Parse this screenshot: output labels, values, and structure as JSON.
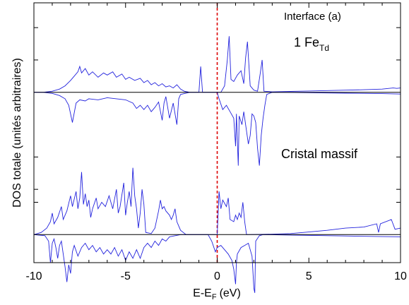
{
  "chart_data": {
    "type": "line",
    "xlabel": "E-E",
    "xlabel_sub": "F",
    "xlabel_unit": "(eV)",
    "ylabel": "DOS totale (unités arbitraires)",
    "xlim": [
      -10,
      10
    ],
    "ylim": [
      -7.9,
      4.15
    ],
    "xticks": [
      -10,
      -5,
      0,
      5,
      10
    ],
    "fermi_level": 0,
    "fermi_color": "#dd0000",
    "line_color": "#2222dd",
    "panels": [
      {
        "label": "Interface (a)",
        "sublabel_main": "1 Fe",
        "sublabel_sub": "Td",
        "baseline": 0,
        "spin_up": [
          [
            -10,
            0
          ],
          [
            -9.5,
            0
          ],
          [
            -9.0,
            0.05
          ],
          [
            -8.6,
            0.15
          ],
          [
            -8.3,
            0.3
          ],
          [
            -8.0,
            0.55
          ],
          [
            -7.8,
            0.75
          ],
          [
            -7.6,
            0.95
          ],
          [
            -7.5,
            1.2
          ],
          [
            -7.4,
            0.9
          ],
          [
            -7.2,
            1.1
          ],
          [
            -7.0,
            0.8
          ],
          [
            -6.8,
            0.95
          ],
          [
            -6.5,
            0.7
          ],
          [
            -6.2,
            0.9
          ],
          [
            -6.0,
            0.8
          ],
          [
            -5.7,
            0.95
          ],
          [
            -5.5,
            0.7
          ],
          [
            -5.2,
            0.85
          ],
          [
            -5.0,
            0.6
          ],
          [
            -4.8,
            0.7
          ],
          [
            -4.5,
            0.55
          ],
          [
            -4.2,
            0.65
          ],
          [
            -4.0,
            0.45
          ],
          [
            -3.8,
            0.55
          ],
          [
            -3.6,
            0.35
          ],
          [
            -3.4,
            0.45
          ],
          [
            -3.2,
            0.3
          ],
          [
            -3.0,
            0.4
          ],
          [
            -2.8,
            0.25
          ],
          [
            -2.6,
            0.3
          ],
          [
            -2.4,
            0.2
          ],
          [
            -2.2,
            0.35
          ],
          [
            -2.0,
            0.15
          ],
          [
            -1.8,
            0.05
          ],
          [
            -1.5,
            0
          ],
          [
            -1.0,
            0
          ],
          [
            -0.9,
            1.2
          ],
          [
            -0.8,
            0
          ],
          [
            0.2,
            0
          ],
          [
            0.4,
            0.3
          ],
          [
            0.55,
            1.5
          ],
          [
            0.65,
            2.6
          ],
          [
            0.75,
            0.6
          ],
          [
            0.9,
            0.5
          ],
          [
            1.1,
            0.8
          ],
          [
            1.3,
            1.0
          ],
          [
            1.45,
            0.4
          ],
          [
            1.55,
            1.6
          ],
          [
            1.65,
            2.35
          ],
          [
            1.8,
            0.3
          ],
          [
            2.0,
            0.1
          ],
          [
            2.2,
            0.05
          ],
          [
            2.35,
            0.9
          ],
          [
            2.45,
            1.5
          ],
          [
            2.55,
            0.05
          ],
          [
            3.0,
            0.02
          ],
          [
            4.0,
            0.04
          ],
          [
            5.0,
            0.06
          ],
          [
            6.0,
            0.08
          ],
          [
            7.0,
            0.1
          ],
          [
            8.0,
            0.12
          ],
          [
            9.0,
            0.15
          ],
          [
            9.6,
            0.2
          ],
          [
            9.8,
            0.18
          ],
          [
            10,
            0.2
          ]
        ],
        "spin_down": [
          [
            -10,
            0
          ],
          [
            -9.5,
            0
          ],
          [
            -9.0,
            -0.05
          ],
          [
            -8.6,
            -0.15
          ],
          [
            -8.3,
            -0.3
          ],
          [
            -8.1,
            -0.6
          ],
          [
            -7.9,
            -1.4
          ],
          [
            -7.7,
            -0.5
          ],
          [
            -7.5,
            -0.35
          ],
          [
            -7.2,
            -0.4
          ],
          [
            -7.0,
            -0.3
          ],
          [
            -6.5,
            -0.35
          ],
          [
            -6.0,
            -0.25
          ],
          [
            -5.5,
            -0.3
          ],
          [
            -5.0,
            -0.35
          ],
          [
            -4.6,
            -0.5
          ],
          [
            -4.4,
            -0.75
          ],
          [
            -4.2,
            -0.6
          ],
          [
            -4.0,
            -0.8
          ],
          [
            -3.8,
            -0.6
          ],
          [
            -3.6,
            -0.9
          ],
          [
            -3.4,
            -0.7
          ],
          [
            -3.2,
            -0.45
          ],
          [
            -3.0,
            -1.3
          ],
          [
            -2.9,
            -0.5
          ],
          [
            -2.8,
            -0.2
          ],
          [
            -2.6,
            -1.2
          ],
          [
            -2.4,
            -0.5
          ],
          [
            -2.2,
            -1.5
          ],
          [
            -2.1,
            -0.3
          ],
          [
            -2.0,
            -0.1
          ],
          [
            -1.5,
            0
          ],
          [
            0.0,
            0
          ],
          [
            0.1,
            -0.3
          ],
          [
            0.3,
            -0.8
          ],
          [
            0.5,
            -0.6
          ],
          [
            0.7,
            -0.9
          ],
          [
            0.9,
            -1.2
          ],
          [
            1.0,
            -2.5
          ],
          [
            1.05,
            -1.0
          ],
          [
            1.15,
            -3.4
          ],
          [
            1.2,
            -1.1
          ],
          [
            1.35,
            -1.5
          ],
          [
            1.45,
            -0.9
          ],
          [
            1.6,
            -1.8
          ],
          [
            1.7,
            -2.4
          ],
          [
            1.8,
            -2.0
          ],
          [
            1.9,
            -1.0
          ],
          [
            2.0,
            -1.1
          ],
          [
            2.1,
            -1.4
          ],
          [
            2.2,
            -2.6
          ],
          [
            2.3,
            -3.4
          ],
          [
            2.4,
            -2.0
          ],
          [
            2.5,
            -1.2
          ],
          [
            2.6,
            -0.6
          ],
          [
            2.7,
            -0.1
          ],
          [
            3.0,
            0
          ],
          [
            5.0,
            -0.02
          ],
          [
            7.0,
            -0.04
          ],
          [
            9.0,
            -0.06
          ],
          [
            10,
            -0.08
          ]
        ]
      },
      {
        "label": "Cristal massif",
        "baseline": -6.6,
        "spin_up": [
          [
            -10,
            0
          ],
          [
            -9.6,
            0.1
          ],
          [
            -9.3,
            0.3
          ],
          [
            -9.1,
            0.6
          ],
          [
            -9.0,
            1.0
          ],
          [
            -8.9,
            0.5
          ],
          [
            -8.7,
            0.8
          ],
          [
            -8.5,
            1.3
          ],
          [
            -8.4,
            0.7
          ],
          [
            -8.2,
            1.1
          ],
          [
            -8.0,
            1.8
          ],
          [
            -7.9,
            1.3
          ],
          [
            -7.7,
            2.0
          ],
          [
            -7.6,
            1.2
          ],
          [
            -7.5,
            1.7
          ],
          [
            -7.4,
            2.9
          ],
          [
            -7.3,
            1.4
          ],
          [
            -7.2,
            1.9
          ],
          [
            -7.1,
            1.3
          ],
          [
            -7.0,
            1.6
          ],
          [
            -6.9,
            0.8
          ],
          [
            -6.8,
            1.2
          ],
          [
            -6.6,
            1.7
          ],
          [
            -6.5,
            1.2
          ],
          [
            -6.3,
            1.5
          ],
          [
            -6.1,
            1.3
          ],
          [
            -5.9,
            1.8
          ],
          [
            -5.7,
            1.2
          ],
          [
            -5.5,
            2.1
          ],
          [
            -5.4,
            1.0
          ],
          [
            -5.3,
            1.3
          ],
          [
            -5.1,
            2.4
          ],
          [
            -5.0,
            0.9
          ],
          [
            -4.9,
            1.5
          ],
          [
            -4.8,
            2.0
          ],
          [
            -4.7,
            1.3
          ],
          [
            -4.6,
            3.1
          ],
          [
            -4.5,
            1.8
          ],
          [
            -4.4,
            1.2
          ],
          [
            -4.3,
            0.3
          ],
          [
            -4.2,
            1.0
          ],
          [
            -4.1,
            2.1
          ],
          [
            -4.0,
            1.4
          ],
          [
            -3.9,
            0.1
          ],
          [
            -3.6,
            0.05
          ],
          [
            -3.4,
            0.3
          ],
          [
            -3.2,
            1.1
          ],
          [
            -3.1,
            1.6
          ],
          [
            -3.0,
            1.2
          ],
          [
            -2.9,
            1.3
          ],
          [
            -2.8,
            1.1
          ],
          [
            -2.6,
            0.9
          ],
          [
            -2.5,
            0.7
          ],
          [
            -2.4,
            0.9
          ],
          [
            -2.3,
            1.2
          ],
          [
            -2.2,
            0.6
          ],
          [
            -2.0,
            0.2
          ],
          [
            -1.7,
            0
          ],
          [
            0,
            0
          ],
          [
            0.1,
            2.0
          ],
          [
            0.2,
            1.2
          ],
          [
            0.3,
            1.6
          ],
          [
            0.5,
            1.3
          ],
          [
            0.6,
            1.7
          ],
          [
            0.7,
            0.7
          ],
          [
            0.9,
            0.6
          ],
          [
            1.0,
            0.9
          ],
          [
            1.1,
            0.7
          ],
          [
            1.2,
            1.0
          ],
          [
            1.3,
            0.8
          ],
          [
            1.4,
            1.5
          ],
          [
            1.5,
            0.6
          ],
          [
            1.6,
            0
          ],
          [
            3.0,
            0.02
          ],
          [
            4.0,
            0.05
          ],
          [
            5.0,
            0.12
          ],
          [
            6.0,
            0.2
          ],
          [
            7.0,
            0.3
          ],
          [
            8.0,
            0.35
          ],
          [
            8.7,
            0.5
          ],
          [
            8.8,
            0.1
          ],
          [
            8.9,
            0.5
          ],
          [
            9.5,
            0.7
          ],
          [
            9.7,
            0.25
          ],
          [
            10,
            0.3
          ]
        ],
        "spin_down": [
          [
            -10,
            0
          ],
          [
            -9.4,
            -0.05
          ],
          [
            -9.2,
            -0.3
          ],
          [
            -9.1,
            -1.3
          ],
          [
            -9.0,
            -0.4
          ],
          [
            -8.9,
            -0.2
          ],
          [
            -8.8,
            -0.6
          ],
          [
            -8.7,
            -1.1
          ],
          [
            -8.6,
            -0.5
          ],
          [
            -8.5,
            -0.3
          ],
          [
            -8.4,
            -0.9
          ],
          [
            -8.3,
            -1.5
          ],
          [
            -8.2,
            -2.2
          ],
          [
            -8.1,
            -1.4
          ],
          [
            -8.0,
            -1.8
          ],
          [
            -7.9,
            -0.8
          ],
          [
            -7.8,
            -0.5
          ],
          [
            -7.6,
            -1.0
          ],
          [
            -7.4,
            -0.6
          ],
          [
            -7.2,
            -0.4
          ],
          [
            -7.0,
            -0.7
          ],
          [
            -6.8,
            -0.5
          ],
          [
            -6.6,
            -0.8
          ],
          [
            -6.4,
            -0.6
          ],
          [
            -6.2,
            -0.9
          ],
          [
            -6.0,
            -0.7
          ],
          [
            -5.8,
            -0.9
          ],
          [
            -5.6,
            -0.6
          ],
          [
            -5.4,
            -1.0
          ],
          [
            -5.2,
            -0.7
          ],
          [
            -5.0,
            -1.2
          ],
          [
            -4.8,
            -0.8
          ],
          [
            -4.6,
            -1.1
          ],
          [
            -4.4,
            -0.7
          ],
          [
            -4.2,
            -1.1
          ],
          [
            -4.0,
            -0.6
          ],
          [
            -3.8,
            -0.4
          ],
          [
            -3.6,
            -0.6
          ],
          [
            -3.4,
            -0.3
          ],
          [
            -3.2,
            -0.5
          ],
          [
            -3.0,
            -0.2
          ],
          [
            -2.8,
            -0.3
          ],
          [
            -2.6,
            -0.1
          ],
          [
            -2.0,
            0
          ],
          [
            -0.5,
            0
          ],
          [
            -0.3,
            -0.3
          ],
          [
            -0.1,
            -0.8
          ],
          [
            0.0,
            -0.6
          ],
          [
            0.2,
            -0.5
          ],
          [
            0.4,
            -0.7
          ],
          [
            0.6,
            -0.9
          ],
          [
            0.8,
            -1.2
          ],
          [
            0.9,
            -1.6
          ],
          [
            1.0,
            -2.3
          ],
          [
            1.05,
            -1.3
          ],
          [
            1.1,
            -0.9
          ],
          [
            1.3,
            -0.6
          ],
          [
            1.5,
            -0.5
          ],
          [
            1.7,
            -0.4
          ],
          [
            1.9,
            -1.0
          ],
          [
            2.0,
            -2.5
          ],
          [
            2.05,
            -2.7
          ],
          [
            2.1,
            -0.3
          ],
          [
            2.3,
            -0.05
          ],
          [
            2.5,
            0
          ],
          [
            4.0,
            -0.02
          ],
          [
            6.0,
            -0.05
          ],
          [
            8.0,
            -0.08
          ],
          [
            10,
            -0.1
          ]
        ]
      }
    ]
  }
}
